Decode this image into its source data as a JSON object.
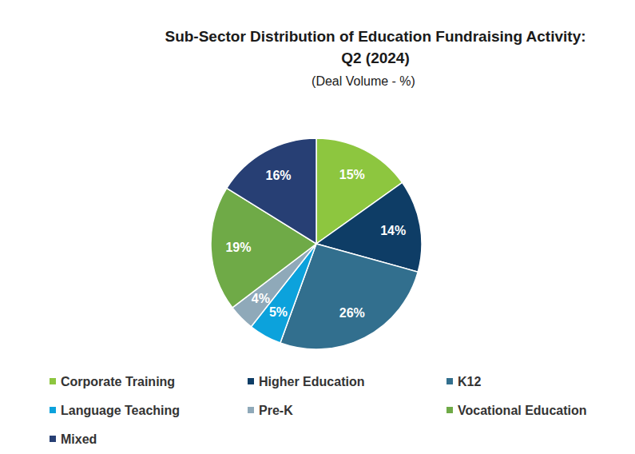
{
  "chart_data": {
    "type": "pie",
    "title": [
      "Sub-Sector Distribution of Education Fundraising Activity:",
      "Q2 (2024)"
    ],
    "subtitle": "(Deal Volume - %)",
    "categories": [
      "Corporate Training",
      "Higher Education",
      "K12",
      "Language Teaching",
      "Pre-K",
      "Vocational Education",
      "Mixed"
    ],
    "values": [
      15,
      14,
      26,
      5,
      4,
      19,
      16
    ],
    "value_labels": [
      "15%",
      "14%",
      "26%",
      "5%",
      "4%",
      "19%",
      "16%"
    ],
    "colors": [
      "#8DC63F",
      "#0E3D66",
      "#326F8E",
      "#0CA2DC",
      "#8FA9B9",
      "#6FAA47",
      "#273F74"
    ],
    "data_labels": true,
    "legend": "bottom"
  }
}
